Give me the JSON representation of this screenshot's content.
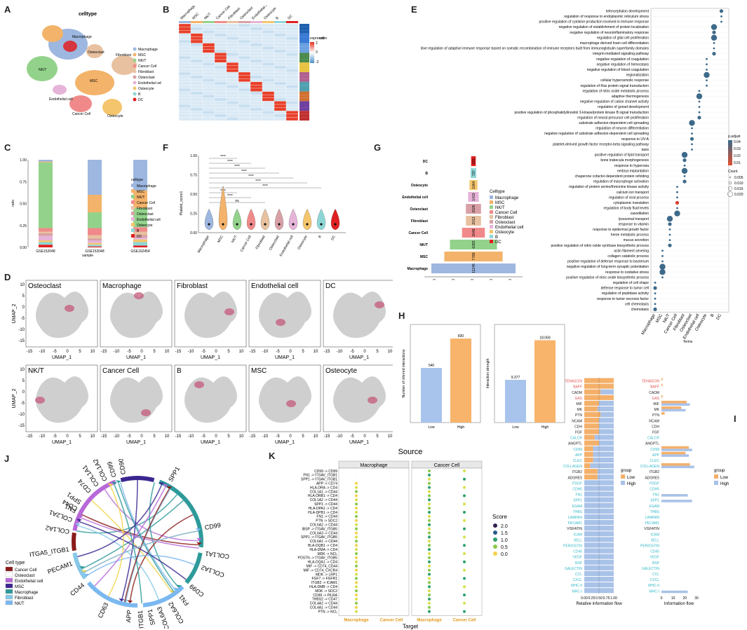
{
  "panel_labels": [
    "A",
    "B",
    "C",
    "D",
    "E",
    "F",
    "G",
    "H",
    "I",
    "J",
    "K"
  ],
  "palette": {
    "Macrophage": "#9db7e0",
    "MSC": "#f3b36a",
    "NK/T": "#93d28b",
    "Cancer Cell": "#f08a8a",
    "Fibroblast": "#e8c1a0",
    "Osteoclast": "#d8a0a6",
    "Endothelial cell": "#e6b4d8",
    "Osteocyte": "#f4c56d",
    "B": "#8ed6d6",
    "DC": "#e02020"
  },
  "A": {
    "title": "celltype",
    "legend": [
      "Macrophage",
      "MSC",
      "NK/T",
      "Cancer Cell",
      "Fibroblast",
      "Osteoclast",
      "Endothelial cell",
      "Osteocyte",
      "B",
      "DC"
    ],
    "cluster_labels": [
      "Macrophage",
      "MSC",
      "NK/T",
      "Fibroblast",
      "Endothelial cell",
      "Osteoclast",
      "Cancer Cell",
      "Osteocyte"
    ]
  },
  "B": {
    "columns": [
      "Macrophage",
      "MSC",
      "NK/T",
      "Cancer Cell",
      "Fibroblast",
      "Osteoclast",
      "Endothelial cell",
      "Osteocyte",
      "B",
      "DC"
    ],
    "legend_title": "expression",
    "legend_ticks": [
      "2",
      "1",
      "0",
      "-1",
      "-2"
    ],
    "cell_legend_title": "cell"
  },
  "C": {
    "ylabel": "ratio",
    "xlabel": "sample",
    "samples": [
      "GSE152048",
      "GSE152048",
      "GSE162454"
    ],
    "yticks": [
      "0.00",
      "0.25",
      "0.50",
      "0.75",
      "1.00"
    ],
    "legend_title": "celltype",
    "legend": [
      "Macrophage",
      "MSC",
      "NK/T",
      "Cancer Cell",
      "Fibroblast",
      "Osteoclast",
      "Endothelial cell",
      "Osteocyte",
      "B",
      "DC"
    ]
  },
  "D": {
    "panels": [
      "Osteoclast",
      "Macrophage",
      "Fibroblast",
      "Endothelial cell",
      "DC",
      "NK/T",
      "Cancer Cell",
      "B",
      "MSC",
      "Osteocyte"
    ],
    "xlabel": "UMAP_1",
    "ylabel": "UMAP_2",
    "xticks": [
      "-15",
      "-10",
      "-5",
      "0",
      "5",
      "10"
    ],
    "yticks": [
      "10",
      "5",
      "0",
      "-5",
      "-10",
      "-15"
    ]
  },
  "E": {
    "terms": [
      "telencephalon development",
      "regulation of response to endoplasmic reticulum stress",
      "positive regulation of cytokine production involved in immune response",
      "negative regulation of establishment of protein localization",
      "negative regulation of neuroinflammatory response",
      "regulation of glial cell proliferation",
      "macrophage derived foam cell differentiation",
      "positive regulation of adaptive immune response based on somatic recombination of immune receptors built from immunoglobulin superfamily domains",
      "integrin-mediated signaling pathway",
      "negative regulation of coagulation",
      "negative regulation of hemostasis",
      "negative regulation of blood coagulation",
      "regionalization",
      "cellular hyperosmotic response",
      "regulation of Ras protein signal transduction",
      "regulation of nitric oxide metabolic process",
      "adaptive thermogenesis",
      "negative regulation of cation channel activity",
      "regulation of gonad development",
      "positive regulation of phosphatidylinositol 3-kinase/protein kinase B signal transduction",
      "regulation of neural precursor cell proliferation",
      "substrate adhesion-dependent cell spreading",
      "regulation of neuron differentiation",
      "negative regulation of substrate adhesion-dependent cell spreading",
      "response to UV-A",
      "platelet-derived growth factor receptor-beta signaling pathway",
      "taxis",
      "positive regulation of lipid transport",
      "bone trabecula morphogenesis",
      "response to hyperoxia",
      "embryo implantation",
      "chaperone cofactor-dependent protein refolding",
      "regulation of macrophage activation",
      "regulation of protein serine/threonine kinase activity",
      "calcium ion transport",
      "regulation of viral process",
      "cytoplasmic translation",
      "regulation of body fluid levels",
      "vasodilation",
      "lysosomal transport",
      "response to vitamin",
      "response to epidermal growth factor",
      "heme metabolic process",
      "mucus secretion",
      "positive regulation of nitric-oxide synthase biosynthetic process",
      "actin filament severing",
      "collagen catabolic process",
      "positive regulation of defense response to bacterium",
      "negative regulation of long-term synaptic potentiation",
      "response to oxidative stress",
      "positive regulation of nitric oxide biosynthetic process",
      "regulation of cell shape",
      "defense response to tumor cell",
      "regulation of peptidase activity",
      "response to tumor necrosis factor",
      "cell chemotaxis",
      "chemotaxis"
    ],
    "x_categories": [
      "Macrophage",
      "MSC",
      "NK/T",
      "Cancer Cell",
      "Fibroblast",
      "Osteoclast",
      "Endothelial cell",
      "Osteocyte",
      "B",
      "DC"
    ],
    "xlabel": "Terms",
    "padj_title": "p.adjust",
    "padj_ticks": [
      "0.04",
      "0.03",
      "0.02",
      "0.01"
    ],
    "count_title": "Count",
    "count_ticks": [
      "0.005",
      "0.010",
      "0.015",
      "0.020"
    ]
  },
  "F": {
    "ylabel": "Platelet_score1",
    "yticks": [
      "0.00",
      "0.25",
      "0.50",
      "0.75",
      "1.00"
    ],
    "categories": [
      "Macrophage",
      "MSC",
      "NK/T",
      "Cancer Cell",
      "Fibroblast",
      "Osteoclast",
      "Endothelial cell",
      "Osteocyte",
      "B",
      "DC"
    ],
    "sig": [
      "****",
      "****",
      "****",
      "****",
      "****",
      "****",
      "****",
      "****",
      "****",
      "ns"
    ]
  },
  "G": {
    "chart_data": {
      "type": "bar",
      "categories": [
        "DC",
        "B",
        "Osteocyte",
        "Endothelial cell",
        "Osteoclast",
        "Fibroblast",
        "Cancer Cell",
        "NK/T",
        "MSC",
        "Macrophage"
      ],
      "values": [
        621,
        737,
        1064,
        1419,
        2026,
        2013,
        3048,
        6283,
        7789,
        11245
      ],
      "xlabel": "Cell_number",
      "xticks": [
        "-10000",
        "-5000",
        "0",
        "5000",
        "10000"
      ],
      "legend_title": "Celltype",
      "legend": [
        "Macrophage",
        "MSC",
        "NK/T",
        "Cancer Cell",
        "Fibroblast",
        "Osteoclast",
        "Endothelial cell",
        "Osteocyte",
        "B",
        "DC"
      ]
    }
  },
  "H": {
    "chart_data": [
      {
        "type": "bar",
        "categories": [
          "Low",
          "High"
        ],
        "values": [
          540,
          830
        ],
        "ylabel": "Number of inferred interactions",
        "value_labels": [
          "540",
          "830"
        ]
      },
      {
        "type": "bar",
        "categories": [
          "Low",
          "High"
        ],
        "values": [
          9.377,
          18.069
        ],
        "ylabel": "Interaction strength",
        "value_labels": [
          "9.377",
          "18.069"
        ]
      }
    ]
  },
  "I": {
    "pathways": [
      "TENASCIN",
      "BAFF",
      "CADM",
      "GAS",
      "MIF",
      "MK",
      "PTN",
      "NCAM",
      "CDH",
      "FGF",
      "CALCR",
      "ANGPTL",
      "CD99",
      "APP",
      "CLEC",
      "COLLAGEN",
      "ITGB2",
      "ADGRE5",
      "PDGF",
      "CDH5",
      "FN1",
      "SPP1",
      "ESAM",
      "THBS",
      "LAMININ",
      "PECAM1",
      "VISFATIN",
      "ICAM",
      "SELL",
      "PERIOSTIN",
      "CD45",
      "VEGF",
      "BSP",
      "GALECTIN",
      "CCL",
      "CXCL",
      "MHC-II",
      "MHC-I"
    ],
    "label_colors": [
      "#e05050",
      "#e05050",
      "#222",
      "#e05050",
      "#222",
      "#222",
      "#222",
      "#222",
      "#222",
      "#222",
      "#33b8c8",
      "#222",
      "#33b8c8",
      "#33b8c8",
      "#33b8c8",
      "#33b8c8",
      "#222",
      "#222",
      "#33b8c8",
      "#33b8c8",
      "#33b8c8",
      "#33b8c8",
      "#33b8c8",
      "#33b8c8",
      "#33b8c8",
      "#33b8c8",
      "#222",
      "#33b8c8",
      "#33b8c8",
      "#33b8c8",
      "#33b8c8",
      "#33b8c8",
      "#33b8c8",
      "#33b8c8",
      "#33b8c8",
      "#33b8c8",
      "#33b8c8",
      "#33b8c8"
    ],
    "relative_low": [
      1.0,
      1.0,
      0.55,
      1.0,
      0.5,
      0.45,
      0.55,
      0.5,
      0.5,
      0.5,
      0.35,
      0.5,
      0.3,
      0.3,
      0.3,
      0.2,
      0.45,
      0.45,
      0.0,
      0.0,
      0.0,
      0.0,
      0.0,
      0.0,
      0.0,
      0.0,
      0.0,
      0.0,
      0.0,
      0.0,
      0.0,
      0.0,
      0.0,
      0.0,
      0.0,
      0.0,
      0.0,
      0.0
    ],
    "xlabel_left": "Relative information flow",
    "xlabel_right": "Information flow",
    "xticks_left": [
      "0.00",
      "0.25",
      "0.50",
      "0.75",
      "1.00"
    ],
    "xticks_right": [
      "0",
      "10",
      "20",
      "30"
    ],
    "legend_title": "group",
    "legend": [
      "Low",
      "High"
    ],
    "flow_low": [
      1,
      1,
      0,
      1,
      23,
      18,
      3,
      0,
      0,
      0,
      0,
      0,
      25,
      22,
      0,
      26,
      0,
      0,
      0,
      0,
      0,
      0,
      0,
      0,
      0,
      0,
      0,
      0,
      0,
      0,
      0,
      0,
      0,
      0,
      0,
      0,
      0,
      0
    ],
    "flow_high": [
      0,
      0,
      0,
      0,
      26,
      22,
      0,
      0,
      0,
      0,
      0,
      0,
      28,
      25,
      0,
      30,
      0,
      0,
      0,
      0,
      24,
      28,
      0,
      0,
      0,
      0,
      0,
      0,
      0,
      0,
      0,
      0,
      0,
      0,
      0,
      0,
      0,
      24
    ]
  },
  "J": {
    "legend_title": "Cell type",
    "legend": [
      "Cancer Cell",
      "Osteoclast",
      "Endothelial cell",
      "MSC",
      "Macrophage",
      "Fibroblast",
      "NK/T"
    ],
    "legend_colors": [
      "#8b1a1a",
      "#ffffff",
      "#b768d8",
      "#3a2590",
      "#2e9a9a",
      "#87c8e8",
      "#7bb8f0"
    ],
    "genes": [
      "CD44",
      "SPP1",
      "CD99",
      "COL1A1",
      "COL1A2",
      "CD99",
      "FN1",
      "COL6A2",
      "COL6A3",
      "SPP1",
      "AV_ITGB1",
      "APP",
      "CD63",
      "CD44",
      "PECAM1",
      "ITGA5_ITGB1",
      "COL1A2",
      "COL2A1",
      "FN1",
      "SPP1",
      "CD74",
      "COL1A1",
      "COL1A2",
      "CD99",
      "CD90"
    ]
  },
  "K": {
    "title": "Source",
    "facets": [
      "Macrophage",
      "Cancer Cell"
    ],
    "ylabel": "Interactions (Ligand -> Receptor)",
    "xlabel": "Target",
    "x_categories": [
      "Macrophage",
      "Cancer Cell"
    ],
    "interactions": [
      "CD99 -> CD99",
      "FN1 -> ITGAV_ITGB1",
      "SPP1 -> ITGAV_ITGB1",
      "APP -> CD74",
      "HLA-DRA -> CD4",
      "COL1A1 -> CD44",
      "HLA-DRB1 -> CD4",
      "COL1A2 -> CD44",
      "SPP1 -> CD44",
      "HLA-DPA1 -> CD4",
      "HLA-DPB1 -> CD4",
      "FN1 -> CD44",
      "PTN -> SDC2",
      "COL6A2 -> CD44",
      "IBSP -> ITGAV_ITGB5",
      "COL6A3 -> CD44",
      "SPP1 -> ITGAV_ITGB5",
      "COL6A1 -> CD44",
      "HLA-DQB1 -> CD4",
      "HLA-DMA -> CD4",
      "MDK -> NCL",
      "POSTN -> ITGAV_ITGB5",
      "HLA-DQA1 -> CD4",
      "MIF -> CD74_CD44",
      "MIF -> CD74_CXCR4",
      "MDK -> LRP1",
      "FGF7 -> FGFR1",
      "ITGB2 -> ICAM1",
      "HLA-DMB -> CD4",
      "MDK -> SDC2",
      "CD99 -> PILRA",
      "THBS2 -> CD47",
      "COL4A2 -> CD44",
      "COL4A1 -> CD44",
      "PTN -> NCL"
    ],
    "score_title": "Score",
    "score_ticks": [
      "2.0",
      "1.5",
      "1.0",
      "0.5",
      "0.0"
    ]
  }
}
